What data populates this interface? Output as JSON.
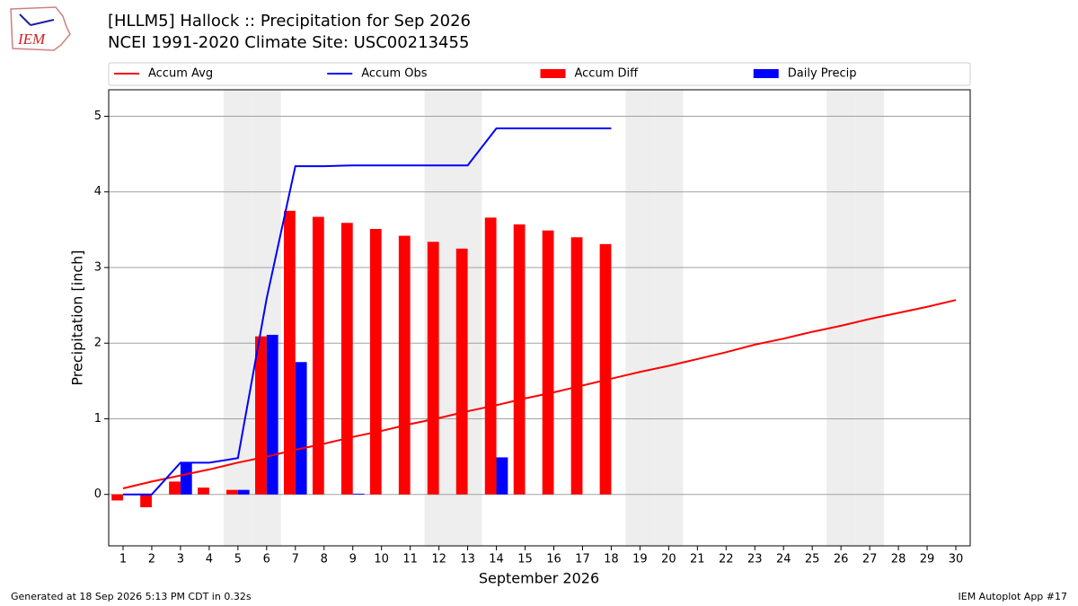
{
  "logo_text": "IEM",
  "footer_left": "Generated at 18 Sep 2026 5:13 PM CDT in 0.32s",
  "footer_right": "IEM Autoplot App #17",
  "chart_data": {
    "type": "combo",
    "title": "[HLLM5] Hallock :: Precipitation for Sep 2026",
    "subtitle": "NCEI 1991-2020 Climate Site: USC00213455",
    "x_label": "September 2026",
    "y_label": "Precipitation [inch]",
    "x": [
      1,
      2,
      3,
      4,
      5,
      6,
      7,
      8,
      9,
      10,
      11,
      12,
      13,
      14,
      15,
      16,
      17,
      18,
      19,
      20,
      21,
      22,
      23,
      24,
      25,
      26,
      27,
      28,
      29,
      30
    ],
    "xlim": [
      0.5,
      30.5
    ],
    "xticks": [
      1,
      2,
      3,
      4,
      5,
      6,
      7,
      8,
      9,
      10,
      11,
      12,
      13,
      14,
      15,
      16,
      17,
      18,
      19,
      20,
      21,
      22,
      23,
      24,
      25,
      26,
      27,
      28,
      29,
      30
    ],
    "ylim": [
      -0.68,
      5.35
    ],
    "yticks": [
      0,
      1,
      2,
      3,
      4,
      5
    ],
    "grid": true,
    "shaded_days": [
      5,
      6,
      12,
      13,
      19,
      20,
      26,
      27
    ],
    "series": [
      {
        "name": "Accum Avg",
        "kind": "line",
        "color": "#ff0000",
        "values": [
          0.08,
          0.17,
          0.25,
          0.33,
          0.42,
          0.5,
          0.59,
          0.67,
          0.76,
          0.84,
          0.93,
          1.01,
          1.1,
          1.18,
          1.27,
          1.35,
          1.44,
          1.53,
          1.62,
          1.7,
          1.79,
          1.88,
          1.98,
          2.06,
          2.15,
          2.23,
          2.32,
          2.4,
          2.48,
          2.57
        ]
      },
      {
        "name": "Accum Obs",
        "kind": "line",
        "color": "#0000ff",
        "values": [
          0,
          0,
          0.42,
          0.42,
          0.48,
          2.59,
          4.34,
          4.34,
          4.35,
          4.35,
          4.35,
          4.35,
          4.35,
          4.84,
          4.84,
          4.84,
          4.84,
          4.84,
          null,
          null,
          null,
          null,
          null,
          null,
          null,
          null,
          null,
          null,
          null,
          null
        ]
      },
      {
        "name": "Accum Diff",
        "kind": "bar",
        "color": "#ff0000",
        "values": [
          -0.08,
          -0.17,
          0.17,
          0.09,
          0.06,
          2.09,
          3.75,
          3.67,
          3.59,
          3.51,
          3.42,
          3.34,
          3.25,
          3.66,
          3.57,
          3.49,
          3.4,
          3.31,
          null,
          null,
          null,
          null,
          null,
          null,
          null,
          null,
          null,
          null,
          null,
          null
        ]
      },
      {
        "name": "Daily Precip",
        "kind": "bar",
        "color": "#0000ff",
        "values": [
          0,
          0,
          0.42,
          0,
          0.06,
          2.11,
          1.75,
          0,
          0.01,
          0,
          0,
          0,
          0,
          0.49,
          0,
          0,
          0,
          0,
          null,
          null,
          null,
          null,
          null,
          null,
          null,
          null,
          null,
          null,
          null,
          null
        ]
      }
    ]
  }
}
